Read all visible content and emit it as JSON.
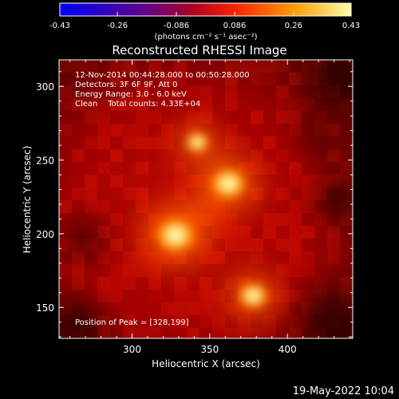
{
  "chart_data": {
    "type": "heatmap",
    "title": "Reconstructed RHESSI Image",
    "xlabel": "Heliocentric X (arcsec)",
    "ylabel": "Heliocentric Y (arcsec)",
    "x_ticks": [
      300,
      350,
      400
    ],
    "y_ticks": [
      150,
      200,
      250,
      300
    ],
    "xlim": [
      253,
      442
    ],
    "ylim": [
      129,
      318
    ],
    "colorbar": {
      "ticks": [
        "-0.43",
        "-0.26",
        "-0.086",
        "0.086",
        "0.26",
        "0.43"
      ],
      "range": [
        -0.43,
        0.43
      ],
      "units": "(photons cm⁻² s⁻¹ asec⁻²)",
      "colors": [
        "#0000ff",
        "#330088",
        "#660066",
        "#aa0000",
        "#ff3300",
        "#ffaa00",
        "#ffff99"
      ]
    },
    "annotations": {
      "time": "12-Nov-2014 00:44:28.000 to 00:50:28.000",
      "detectors": "Detectors: 3F 6F 9F, Att 0",
      "energy": "Energy Range: 3.0 - 6.0 keV",
      "method": "Clean    Total counts: 4.33E+04",
      "peak": "Position of Peak = [328,199]"
    },
    "sources": [
      {
        "x": 328,
        "y": 199,
        "intensity": 1.0
      },
      {
        "x": 362,
        "y": 234,
        "intensity": 0.88
      },
      {
        "x": 378,
        "y": 158,
        "intensity": 0.72
      },
      {
        "x": 342,
        "y": 262,
        "intensity": 0.55
      }
    ]
  },
  "footer": {
    "date": "19-May-2022 10:04"
  }
}
